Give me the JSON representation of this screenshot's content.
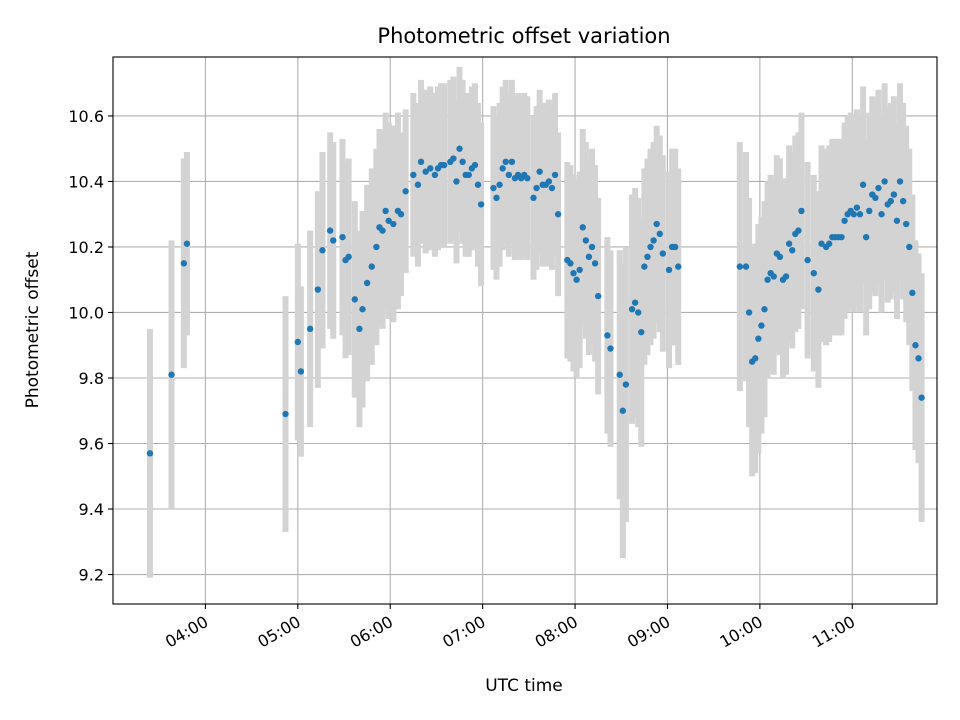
{
  "chart_data": {
    "type": "scatter",
    "title": "Photometric offset variation",
    "xlabel": "UTC time",
    "ylabel": "Photometric offset",
    "xlim": [
      "03:00",
      "11:55"
    ],
    "ylim": [
      9.11,
      10.78
    ],
    "grid": true,
    "x_ticks": [
      "04:00",
      "05:00",
      "06:00",
      "07:00",
      "08:00",
      "09:00",
      "10:00",
      "11:00"
    ],
    "y_ticks": [
      "9.2",
      "9.4",
      "9.6",
      "9.8",
      "10.0",
      "10.2",
      "10.4",
      "10.6"
    ],
    "colors": {
      "points": "#1f77b4",
      "error_bars": "#d3d3d3",
      "grid": "#b0b0b0"
    },
    "series": [
      {
        "points": [
          {
            "x": "03:24",
            "y": 9.57,
            "err": 0.38
          },
          {
            "x": "03:38",
            "y": 9.81,
            "err": 0.41
          },
          {
            "x": "03:46",
            "y": 10.15,
            "err": 0.32
          },
          {
            "x": "03:48",
            "y": 10.21,
            "err": 0.28
          },
          {
            "x": "04:52",
            "y": 9.69,
            "err": 0.36
          },
          {
            "x": "05:00",
            "y": 9.91,
            "err": 0.3
          },
          {
            "x": "05:02",
            "y": 9.82,
            "err": 0.26
          },
          {
            "x": "05:08",
            "y": 9.95,
            "err": 0.3
          },
          {
            "x": "05:13",
            "y": 10.07,
            "err": 0.3
          },
          {
            "x": "05:16",
            "y": 10.19,
            "err": 0.3
          },
          {
            "x": "05:21",
            "y": 10.25,
            "err": 0.3
          },
          {
            "x": "05:23",
            "y": 10.22,
            "err": 0.3
          },
          {
            "x": "05:29",
            "y": 10.23,
            "err": 0.3
          },
          {
            "x": "05:31",
            "y": 10.16,
            "err": 0.3
          },
          {
            "x": "05:33",
            "y": 10.17,
            "err": 0.3
          },
          {
            "x": "05:37",
            "y": 10.04,
            "err": 0.3
          },
          {
            "x": "05:40",
            "y": 9.95,
            "err": 0.3
          },
          {
            "x": "05:42",
            "y": 10.01,
            "err": 0.3
          },
          {
            "x": "05:45",
            "y": 10.09,
            "err": 0.3
          },
          {
            "x": "05:48",
            "y": 10.14,
            "err": 0.3
          },
          {
            "x": "05:51",
            "y": 10.2,
            "err": 0.3
          },
          {
            "x": "05:53",
            "y": 10.26,
            "err": 0.3
          },
          {
            "x": "05:55",
            "y": 10.25,
            "err": 0.3
          },
          {
            "x": "05:57",
            "y": 10.31,
            "err": 0.3
          },
          {
            "x": "05:59",
            "y": 10.28,
            "err": 0.3
          },
          {
            "x": "06:02",
            "y": 10.27,
            "err": 0.3
          },
          {
            "x": "06:05",
            "y": 10.31,
            "err": 0.3
          },
          {
            "x": "06:07",
            "y": 10.3,
            "err": 0.25
          },
          {
            "x": "06:10",
            "y": 10.37,
            "err": 0.25
          },
          {
            "x": "06:15",
            "y": 10.42,
            "err": 0.25
          },
          {
            "x": "06:18",
            "y": 10.39,
            "err": 0.25
          },
          {
            "x": "06:20",
            "y": 10.46,
            "err": 0.25
          },
          {
            "x": "06:23",
            "y": 10.43,
            "err": 0.25
          },
          {
            "x": "06:26",
            "y": 10.44,
            "err": 0.25
          },
          {
            "x": "06:29",
            "y": 10.42,
            "err": 0.25
          },
          {
            "x": "06:31",
            "y": 10.44,
            "err": 0.25
          },
          {
            "x": "06:33",
            "y": 10.45,
            "err": 0.25
          },
          {
            "x": "06:35",
            "y": 10.45,
            "err": 0.25
          },
          {
            "x": "06:39",
            "y": 10.46,
            "err": 0.25
          },
          {
            "x": "06:41",
            "y": 10.47,
            "err": 0.25
          },
          {
            "x": "06:43",
            "y": 10.4,
            "err": 0.25
          },
          {
            "x": "06:45",
            "y": 10.5,
            "err": 0.25
          },
          {
            "x": "06:47",
            "y": 10.46,
            "err": 0.25
          },
          {
            "x": "06:49",
            "y": 10.42,
            "err": 0.25
          },
          {
            "x": "06:51",
            "y": 10.42,
            "err": 0.25
          },
          {
            "x": "06:53",
            "y": 10.44,
            "err": 0.25
          },
          {
            "x": "06:55",
            "y": 10.45,
            "err": 0.25
          },
          {
            "x": "06:57",
            "y": 10.39,
            "err": 0.25
          },
          {
            "x": "06:59",
            "y": 10.33,
            "err": 0.25
          },
          {
            "x": "07:07",
            "y": 10.38,
            "err": 0.25
          },
          {
            "x": "07:09",
            "y": 10.35,
            "err": 0.25
          },
          {
            "x": "07:11",
            "y": 10.39,
            "err": 0.25
          },
          {
            "x": "07:13",
            "y": 10.44,
            "err": 0.25
          },
          {
            "x": "07:15",
            "y": 10.46,
            "err": 0.25
          },
          {
            "x": "07:17",
            "y": 10.42,
            "err": 0.25
          },
          {
            "x": "07:19",
            "y": 10.46,
            "err": 0.25
          },
          {
            "x": "07:21",
            "y": 10.41,
            "err": 0.25
          },
          {
            "x": "07:23",
            "y": 10.42,
            "err": 0.25
          },
          {
            "x": "07:25",
            "y": 10.41,
            "err": 0.25
          },
          {
            "x": "07:27",
            "y": 10.42,
            "err": 0.25
          },
          {
            "x": "07:29",
            "y": 10.41,
            "err": 0.25
          },
          {
            "x": "07:33",
            "y": 10.35,
            "err": 0.25
          },
          {
            "x": "07:35",
            "y": 10.38,
            "err": 0.25
          },
          {
            "x": "07:37",
            "y": 10.43,
            "err": 0.25
          },
          {
            "x": "07:39",
            "y": 10.39,
            "err": 0.25
          },
          {
            "x": "07:41",
            "y": 10.39,
            "err": 0.25
          },
          {
            "x": "07:43",
            "y": 10.4,
            "err": 0.25
          },
          {
            "x": "07:45",
            "y": 10.38,
            "err": 0.25
          },
          {
            "x": "07:47",
            "y": 10.42,
            "err": 0.25
          },
          {
            "x": "07:49",
            "y": 10.3,
            "err": 0.25
          },
          {
            "x": "07:55",
            "y": 10.16,
            "err": 0.3
          },
          {
            "x": "07:57",
            "y": 10.15,
            "err": 0.3
          },
          {
            "x": "07:59",
            "y": 10.12,
            "err": 0.3
          },
          {
            "x": "08:01",
            "y": 10.1,
            "err": 0.3
          },
          {
            "x": "08:03",
            "y": 10.13,
            "err": 0.3
          },
          {
            "x": "08:05",
            "y": 10.26,
            "err": 0.3
          },
          {
            "x": "08:07",
            "y": 10.22,
            "err": 0.3
          },
          {
            "x": "08:09",
            "y": 10.17,
            "err": 0.3
          },
          {
            "x": "08:11",
            "y": 10.2,
            "err": 0.3
          },
          {
            "x": "08:13",
            "y": 10.15,
            "err": 0.3
          },
          {
            "x": "08:15",
            "y": 10.05,
            "err": 0.3
          },
          {
            "x": "08:21",
            "y": 9.93,
            "err": 0.3
          },
          {
            "x": "08:23",
            "y": 9.89,
            "err": 0.3
          },
          {
            "x": "08:29",
            "y": 9.81,
            "err": 0.38
          },
          {
            "x": "08:31",
            "y": 9.7,
            "err": 0.45
          },
          {
            "x": "08:33",
            "y": 9.78,
            "err": 0.42
          },
          {
            "x": "08:37",
            "y": 10.01,
            "err": 0.35
          },
          {
            "x": "08:39",
            "y": 10.03,
            "err": 0.35
          },
          {
            "x": "08:41",
            "y": 10.0,
            "err": 0.35
          },
          {
            "x": "08:43",
            "y": 9.94,
            "err": 0.35
          },
          {
            "x": "08:45",
            "y": 10.14,
            "err": 0.3
          },
          {
            "x": "08:47",
            "y": 10.17,
            "err": 0.3
          },
          {
            "x": "08:49",
            "y": 10.2,
            "err": 0.3
          },
          {
            "x": "08:51",
            "y": 10.22,
            "err": 0.3
          },
          {
            "x": "08:53",
            "y": 10.27,
            "err": 0.3
          },
          {
            "x": "08:55",
            "y": 10.24,
            "err": 0.3
          },
          {
            "x": "08:57",
            "y": 10.18,
            "err": 0.3
          },
          {
            "x": "09:01",
            "y": 10.13,
            "err": 0.3
          },
          {
            "x": "09:03",
            "y": 10.2,
            "err": 0.3
          },
          {
            "x": "09:05",
            "y": 10.2,
            "err": 0.3
          },
          {
            "x": "09:07",
            "y": 10.14,
            "err": 0.3
          },
          {
            "x": "09:47",
            "y": 10.14,
            "err": 0.38
          },
          {
            "x": "09:51",
            "y": 10.14,
            "err": 0.35
          },
          {
            "x": "09:53",
            "y": 10.0,
            "err": 0.35
          },
          {
            "x": "09:55",
            "y": 9.85,
            "err": 0.35
          },
          {
            "x": "09:57",
            "y": 9.86,
            "err": 0.35
          },
          {
            "x": "09:59",
            "y": 9.92,
            "err": 0.35
          },
          {
            "x": "10:01",
            "y": 9.96,
            "err": 0.33
          },
          {
            "x": "10:03",
            "y": 10.01,
            "err": 0.33
          },
          {
            "x": "10:05",
            "y": 10.1,
            "err": 0.3
          },
          {
            "x": "10:07",
            "y": 10.12,
            "err": 0.3
          },
          {
            "x": "10:09",
            "y": 10.11,
            "err": 0.3
          },
          {
            "x": "10:11",
            "y": 10.18,
            "err": 0.3
          },
          {
            "x": "10:13",
            "y": 10.17,
            "err": 0.3
          },
          {
            "x": "10:15",
            "y": 10.1,
            "err": 0.3
          },
          {
            "x": "10:17",
            "y": 10.11,
            "err": 0.3
          },
          {
            "x": "10:19",
            "y": 10.21,
            "err": 0.3
          },
          {
            "x": "10:21",
            "y": 10.19,
            "err": 0.3
          },
          {
            "x": "10:23",
            "y": 10.24,
            "err": 0.3
          },
          {
            "x": "10:25",
            "y": 10.25,
            "err": 0.3
          },
          {
            "x": "10:27",
            "y": 10.31,
            "err": 0.3
          },
          {
            "x": "10:31",
            "y": 10.16,
            "err": 0.3
          },
          {
            "x": "10:35",
            "y": 10.12,
            "err": 0.3
          },
          {
            "x": "10:38",
            "y": 10.07,
            "err": 0.3
          },
          {
            "x": "10:40",
            "y": 10.21,
            "err": 0.3
          },
          {
            "x": "10:43",
            "y": 10.2,
            "err": 0.3
          },
          {
            "x": "10:45",
            "y": 10.21,
            "err": 0.3
          },
          {
            "x": "10:47",
            "y": 10.23,
            "err": 0.3
          },
          {
            "x": "10:49",
            "y": 10.23,
            "err": 0.3
          },
          {
            "x": "10:51",
            "y": 10.23,
            "err": 0.3
          },
          {
            "x": "10:53",
            "y": 10.23,
            "err": 0.3
          },
          {
            "x": "10:55",
            "y": 10.28,
            "err": 0.3
          },
          {
            "x": "10:57",
            "y": 10.3,
            "err": 0.3
          },
          {
            "x": "10:59",
            "y": 10.31,
            "err": 0.3
          },
          {
            "x": "11:01",
            "y": 10.3,
            "err": 0.3
          },
          {
            "x": "11:03",
            "y": 10.32,
            "err": 0.3
          },
          {
            "x": "11:05",
            "y": 10.3,
            "err": 0.3
          },
          {
            "x": "11:07",
            "y": 10.39,
            "err": 0.3
          },
          {
            "x": "11:09",
            "y": 10.23,
            "err": 0.3
          },
          {
            "x": "11:11",
            "y": 10.31,
            "err": 0.3
          },
          {
            "x": "11:13",
            "y": 10.36,
            "err": 0.3
          },
          {
            "x": "11:15",
            "y": 10.35,
            "err": 0.3
          },
          {
            "x": "11:17",
            "y": 10.38,
            "err": 0.3
          },
          {
            "x": "11:19",
            "y": 10.3,
            "err": 0.3
          },
          {
            "x": "11:21",
            "y": 10.4,
            "err": 0.3
          },
          {
            "x": "11:23",
            "y": 10.33,
            "err": 0.3
          },
          {
            "x": "11:25",
            "y": 10.34,
            "err": 0.3
          },
          {
            "x": "11:27",
            "y": 10.36,
            "err": 0.3
          },
          {
            "x": "11:29",
            "y": 10.28,
            "err": 0.3
          },
          {
            "x": "11:31",
            "y": 10.4,
            "err": 0.3
          },
          {
            "x": "11:33",
            "y": 10.34,
            "err": 0.3
          },
          {
            "x": "11:35",
            "y": 10.27,
            "err": 0.3
          },
          {
            "x": "11:37",
            "y": 10.2,
            "err": 0.3
          },
          {
            "x": "11:39",
            "y": 10.06,
            "err": 0.3
          },
          {
            "x": "11:41",
            "y": 9.9,
            "err": 0.32
          },
          {
            "x": "11:43",
            "y": 9.86,
            "err": 0.32
          },
          {
            "x": "11:45",
            "y": 9.74,
            "err": 0.38
          }
        ]
      }
    ]
  }
}
